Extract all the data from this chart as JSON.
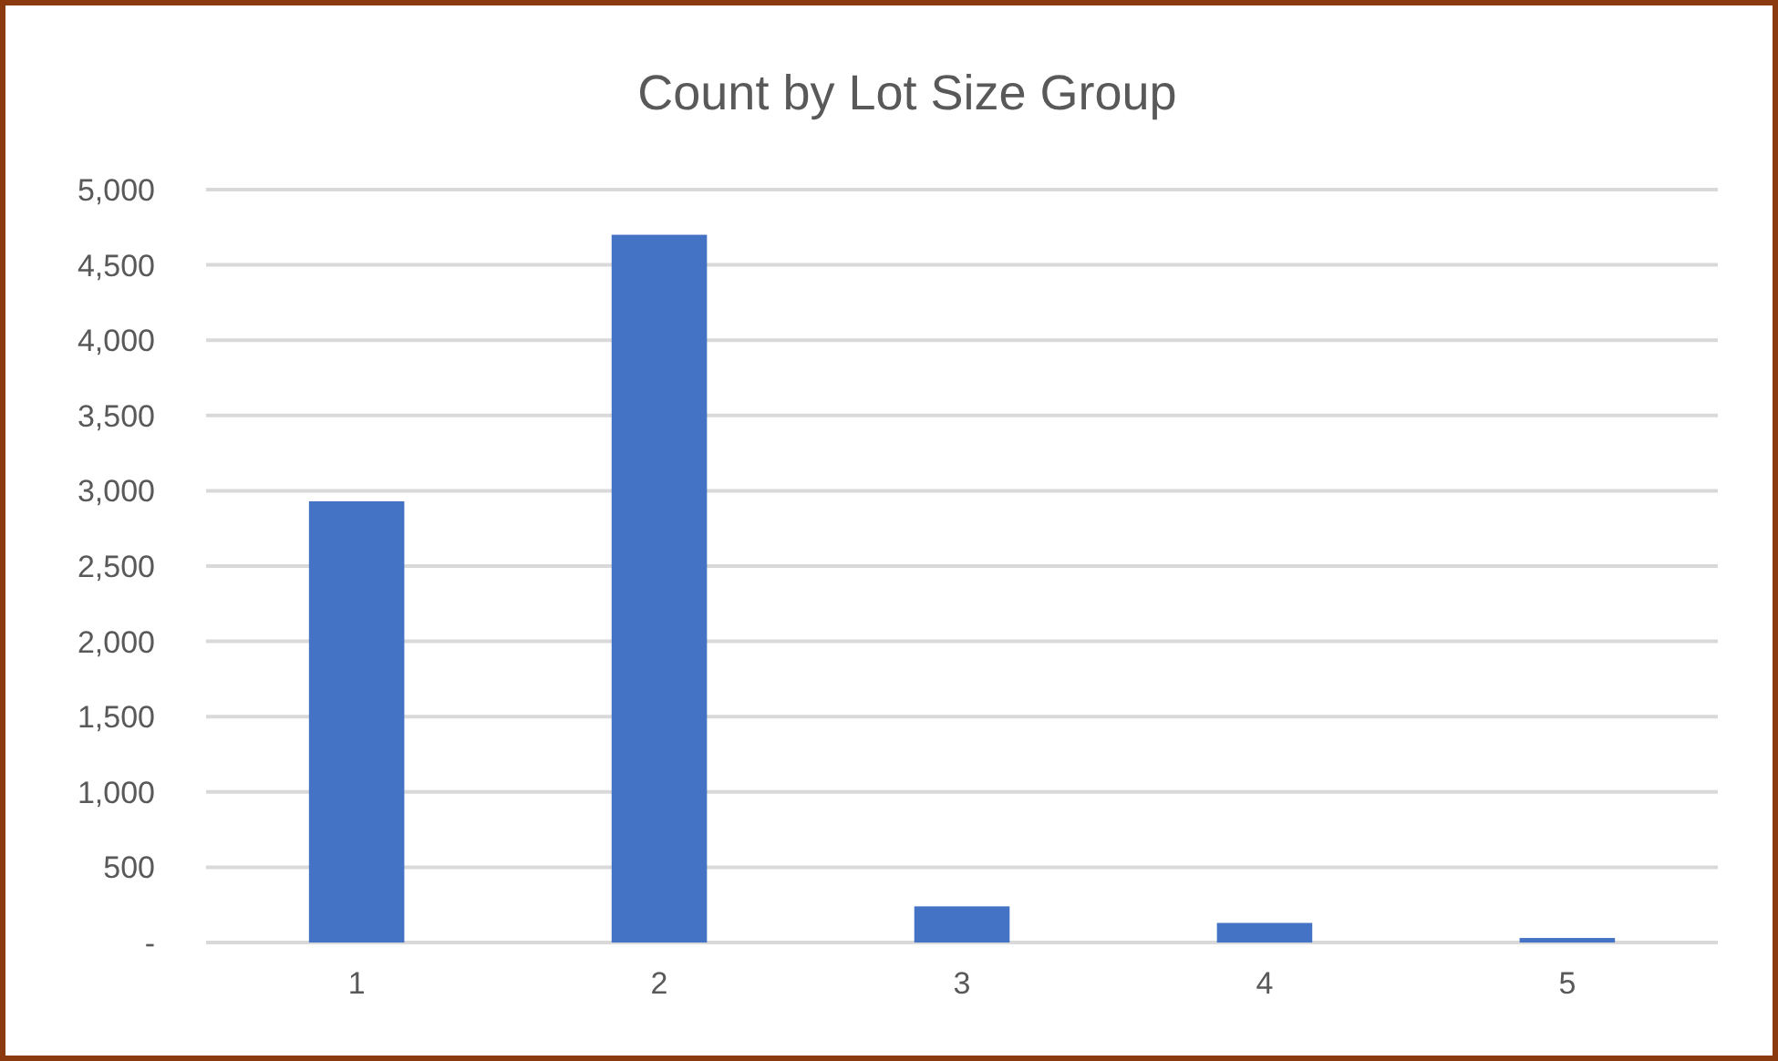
{
  "chart_data": {
    "type": "bar",
    "title": "Count by Lot Size Group",
    "categories": [
      "1",
      "2",
      "3",
      "4",
      "5"
    ],
    "values": [
      2930,
      4700,
      240,
      130,
      30
    ],
    "color": "#4472c4",
    "ylim": [
      0,
      5000
    ],
    "yticks": [
      {
        "value": 0,
        "label": "-"
      },
      {
        "value": 500,
        "label": "500"
      },
      {
        "value": 1000,
        "label": "1,000"
      },
      {
        "value": 1500,
        "label": "1,500"
      },
      {
        "value": 2000,
        "label": "2,000"
      },
      {
        "value": 2500,
        "label": "2,500"
      },
      {
        "value": 3000,
        "label": "3,000"
      },
      {
        "value": 3500,
        "label": "3,500"
      },
      {
        "value": 4000,
        "label": "4,000"
      },
      {
        "value": 4500,
        "label": "4,500"
      },
      {
        "value": 5000,
        "label": "5,000"
      }
    ],
    "grid": "y"
  }
}
